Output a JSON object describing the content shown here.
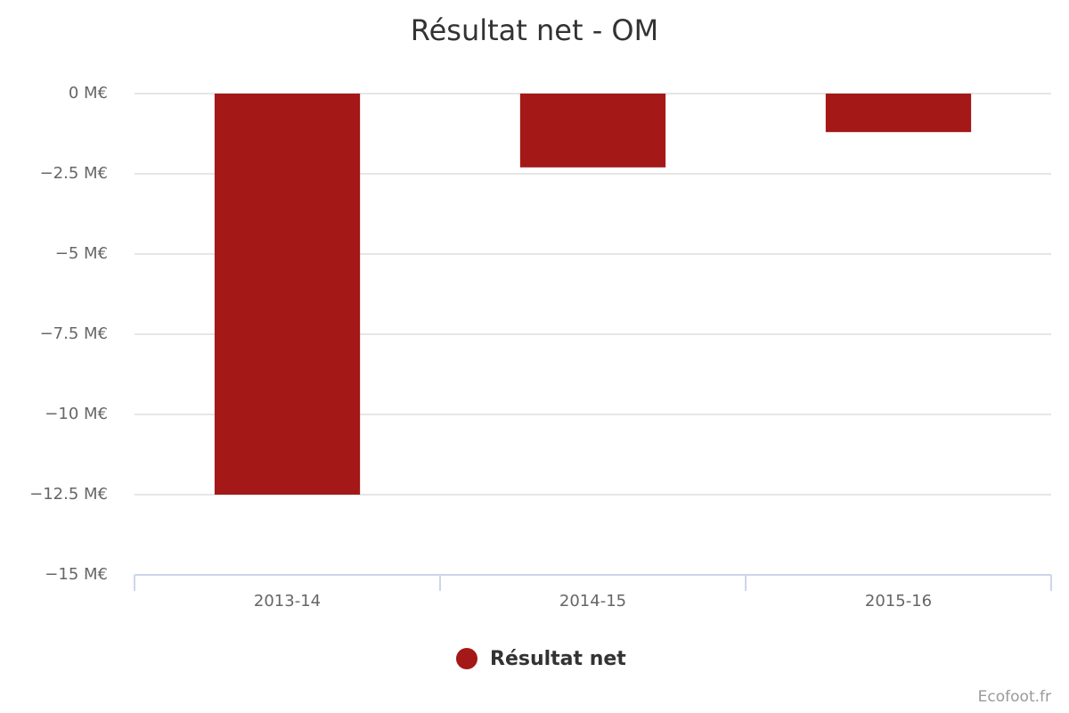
{
  "chart_data": {
    "type": "bar",
    "title": "Résultat net - OM",
    "categories": [
      "2013-14",
      "2014-15",
      "2015-16"
    ],
    "series": [
      {
        "name": "Résultat net",
        "color": "#a51818",
        "values": [
          -12.5,
          -2.3,
          -1.2
        ]
      }
    ],
    "ylim": [
      -15,
      0
    ],
    "yticks": [
      {
        "value": 0,
        "label": "0 M€"
      },
      {
        "value": -2.5,
        "label": "−2.5 M€"
      },
      {
        "value": -5,
        "label": "−5 M€"
      },
      {
        "value": -7.5,
        "label": "−7.5 M€"
      },
      {
        "value": -10,
        "label": "−10 M€"
      },
      {
        "value": -12.5,
        "label": "−12.5 M€"
      },
      {
        "value": -15,
        "label": "−15 M€"
      }
    ],
    "grid": true,
    "legend": "bottom",
    "credits": "Ecofoot.fr"
  }
}
